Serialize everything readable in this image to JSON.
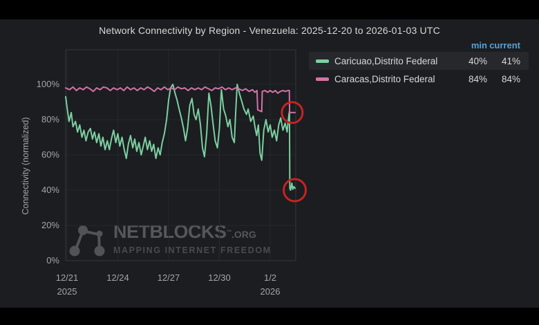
{
  "title": "Network Connectivity by Region - Venezuela: 2025-12-20 to 2026-01-03 UTC",
  "legend": {
    "columns": [
      "min",
      "current"
    ],
    "items": [
      {
        "label": "Caricuao,Distrito Federal",
        "min": "40%",
        "current": "41%",
        "color": "#7ccfa1",
        "highlighted": true
      },
      {
        "label": "Caracas,Distrito Federal",
        "min": "84%",
        "current": "84%",
        "color": "#d572a8",
        "highlighted": false
      }
    ]
  },
  "watermark": {
    "brand": "NETBLOCKS",
    "tm": "™",
    "suffix": ".ORG",
    "tagline": "MAPPING INTERNET FREEDOM"
  },
  "chart_data": {
    "type": "line",
    "title": "Network Connectivity by Region - Venezuela: 2025-12-20 to 2026-01-03 UTC",
    "xlabel": "",
    "ylabel": "Connectivity (normalized)",
    "ylim": [
      0,
      120
    ],
    "grid": true,
    "legend_position": "top-right",
    "y_ticks": [
      "0%",
      "20%",
      "40%",
      "60%",
      "80%",
      "100%"
    ],
    "y_tick_values": [
      0,
      20,
      40,
      60,
      80,
      100
    ],
    "x_ticks": [
      {
        "label": "12/21",
        "year": "2025",
        "day": 0
      },
      {
        "label": "12/24",
        "year": "",
        "day": 3
      },
      {
        "label": "12/27",
        "year": "",
        "day": 6
      },
      {
        "label": "12/30",
        "year": "",
        "day": 9
      },
      {
        "label": "1/2",
        "year": "2026",
        "day": 12
      }
    ],
    "x_domain_days": [
      -0.08,
      13.5
    ],
    "series": [
      {
        "name": "Caricuao,Distrito Federal",
        "color": "#7ccfa1",
        "min_pct": 40,
        "current_pct": 41,
        "points": [
          [
            -0.08,
            93
          ],
          [
            0,
            87
          ],
          [
            0.12,
            79
          ],
          [
            0.25,
            84
          ],
          [
            0.35,
            76
          ],
          [
            0.5,
            79
          ],
          [
            0.62,
            73
          ],
          [
            0.75,
            77
          ],
          [
            0.88,
            70
          ],
          [
            1,
            74
          ],
          [
            1.12,
            68
          ],
          [
            1.25,
            73
          ],
          [
            1.38,
            75
          ],
          [
            1.5,
            69
          ],
          [
            1.62,
            73
          ],
          [
            1.75,
            67
          ],
          [
            1.88,
            72
          ],
          [
            2,
            65
          ],
          [
            2.12,
            70
          ],
          [
            2.25,
            63
          ],
          [
            2.38,
            68
          ],
          [
            2.5,
            63
          ],
          [
            2.62,
            69
          ],
          [
            2.75,
            74
          ],
          [
            2.88,
            67
          ],
          [
            3,
            72
          ],
          [
            3.12,
            65
          ],
          [
            3.25,
            70
          ],
          [
            3.38,
            63
          ],
          [
            3.5,
            58
          ],
          [
            3.62,
            66
          ],
          [
            3.75,
            71
          ],
          [
            3.88,
            64
          ],
          [
            4,
            69
          ],
          [
            4.12,
            62
          ],
          [
            4.25,
            67
          ],
          [
            4.38,
            60
          ],
          [
            4.5,
            65
          ],
          [
            4.62,
            70
          ],
          [
            4.75,
            63
          ],
          [
            4.88,
            68
          ],
          [
            5,
            62
          ],
          [
            5.12,
            66
          ],
          [
            5.25,
            58
          ],
          [
            5.38,
            64
          ],
          [
            5.5,
            60
          ],
          [
            5.62,
            67
          ],
          [
            5.75,
            72
          ],
          [
            5.88,
            80
          ],
          [
            6,
            91
          ],
          [
            6.12,
            98
          ],
          [
            6.25,
            100
          ],
          [
            6.38,
            95
          ],
          [
            6.5,
            91
          ],
          [
            6.62,
            86
          ],
          [
            6.75,
            81
          ],
          [
            6.88,
            75
          ],
          [
            7,
            68
          ],
          [
            7.12,
            75
          ],
          [
            7.25,
            88
          ],
          [
            7.38,
            92
          ],
          [
            7.5,
            83
          ],
          [
            7.62,
            80
          ],
          [
            7.75,
            86
          ],
          [
            7.88,
            77
          ],
          [
            8,
            64
          ],
          [
            8.12,
            59
          ],
          [
            8.25,
            72
          ],
          [
            8.38,
            95
          ],
          [
            8.5,
            88
          ],
          [
            8.62,
            78
          ],
          [
            8.75,
            68
          ],
          [
            8.88,
            64
          ],
          [
            9,
            75
          ],
          [
            9.12,
            97
          ],
          [
            9.25,
            86
          ],
          [
            9.38,
            82
          ],
          [
            9.5,
            76
          ],
          [
            9.62,
            80
          ],
          [
            9.75,
            70
          ],
          [
            9.88,
            67
          ],
          [
            9.95,
            82
          ],
          [
            10.05,
            100
          ],
          [
            10.18,
            95
          ],
          [
            10.3,
            91
          ],
          [
            10.45,
            86
          ],
          [
            10.6,
            83
          ],
          [
            10.7,
            86
          ],
          [
            10.85,
            79
          ],
          [
            11,
            82
          ],
          [
            11.1,
            76
          ],
          [
            11.2,
            71
          ],
          [
            11.3,
            77
          ],
          [
            11.4,
            61
          ],
          [
            11.5,
            57
          ],
          [
            11.62,
            74
          ],
          [
            11.75,
            80
          ],
          [
            11.88,
            73
          ],
          [
            12,
            77
          ],
          [
            12.12,
            70
          ],
          [
            12.25,
            74
          ],
          [
            12.38,
            68
          ],
          [
            12.5,
            77
          ],
          [
            12.62,
            81
          ],
          [
            12.75,
            74
          ],
          [
            12.88,
            78
          ],
          [
            13,
            73
          ],
          [
            13.05,
            78
          ],
          [
            13.1,
            82
          ],
          [
            13.14,
            85
          ],
          [
            13.16,
            41
          ],
          [
            13.2,
            40
          ],
          [
            13.28,
            44
          ],
          [
            13.33,
            40.5
          ],
          [
            13.4,
            42
          ],
          [
            13.47,
            41
          ]
        ]
      },
      {
        "name": "Caracas,Distrito Federal",
        "color": "#d572a8",
        "min_pct": 84,
        "current_pct": 84,
        "points": [
          [
            -0.08,
            98
          ],
          [
            0.15,
            97
          ],
          [
            0.35,
            98.5
          ],
          [
            0.55,
            96.5
          ],
          [
            0.75,
            98
          ],
          [
            0.95,
            97
          ],
          [
            1.15,
            98.5
          ],
          [
            1.35,
            97.5
          ],
          [
            1.55,
            96
          ],
          [
            1.75,
            98
          ],
          [
            1.95,
            97
          ],
          [
            2.15,
            98.5
          ],
          [
            2.35,
            98
          ],
          [
            2.55,
            96.5
          ],
          [
            2.75,
            98
          ],
          [
            2.95,
            97
          ],
          [
            3.15,
            98
          ],
          [
            3.35,
            96.5
          ],
          [
            3.55,
            98.5
          ],
          [
            3.75,
            97
          ],
          [
            3.95,
            98
          ],
          [
            4.15,
            96.5
          ],
          [
            4.35,
            98
          ],
          [
            4.55,
            97
          ],
          [
            4.75,
            98.5
          ],
          [
            4.95,
            97.5
          ],
          [
            5.15,
            96
          ],
          [
            5.35,
            98
          ],
          [
            5.55,
            97
          ],
          [
            5.75,
            98.5
          ],
          [
            5.95,
            97
          ],
          [
            6.15,
            98
          ],
          [
            6.35,
            97
          ],
          [
            6.55,
            98.5
          ],
          [
            6.75,
            97.5
          ],
          [
            6.95,
            98
          ],
          [
            7.15,
            96.5
          ],
          [
            7.35,
            98
          ],
          [
            7.55,
            97
          ],
          [
            7.75,
            98
          ],
          [
            7.95,
            97
          ],
          [
            8.15,
            98.5
          ],
          [
            8.35,
            97.5
          ],
          [
            8.55,
            96.5
          ],
          [
            8.75,
            98
          ],
          [
            8.95,
            97.5
          ],
          [
            9.15,
            98.5
          ],
          [
            9.35,
            97
          ],
          [
            9.55,
            98
          ],
          [
            9.75,
            97
          ],
          [
            9.95,
            98
          ],
          [
            10.15,
            97.5
          ],
          [
            10.35,
            96.5
          ],
          [
            10.55,
            97.5
          ],
          [
            10.75,
            96
          ],
          [
            10.95,
            97
          ],
          [
            11.1,
            95.5
          ],
          [
            11.22,
            96.5
          ],
          [
            11.26,
            85.5
          ],
          [
            11.4,
            85
          ],
          [
            11.5,
            84.5
          ],
          [
            11.53,
            96
          ],
          [
            11.7,
            96.5
          ],
          [
            11.85,
            95.5
          ],
          [
            12,
            96.5
          ],
          [
            12.15,
            95.5
          ],
          [
            12.3,
            96.5
          ],
          [
            12.45,
            95
          ],
          [
            12.6,
            96
          ],
          [
            12.75,
            96.5
          ],
          [
            12.9,
            96
          ],
          [
            13.05,
            96.5
          ],
          [
            13.13,
            96.5
          ],
          [
            13.145,
            84
          ],
          [
            13.47,
            84
          ]
        ]
      }
    ],
    "annotations": [
      {
        "type": "circle",
        "day": 13.3,
        "pct": 84,
        "radius": 15,
        "color": "#c92222"
      },
      {
        "type": "circle",
        "day": 13.45,
        "pct": 40,
        "radius": 16,
        "color": "#c92222"
      }
    ]
  }
}
